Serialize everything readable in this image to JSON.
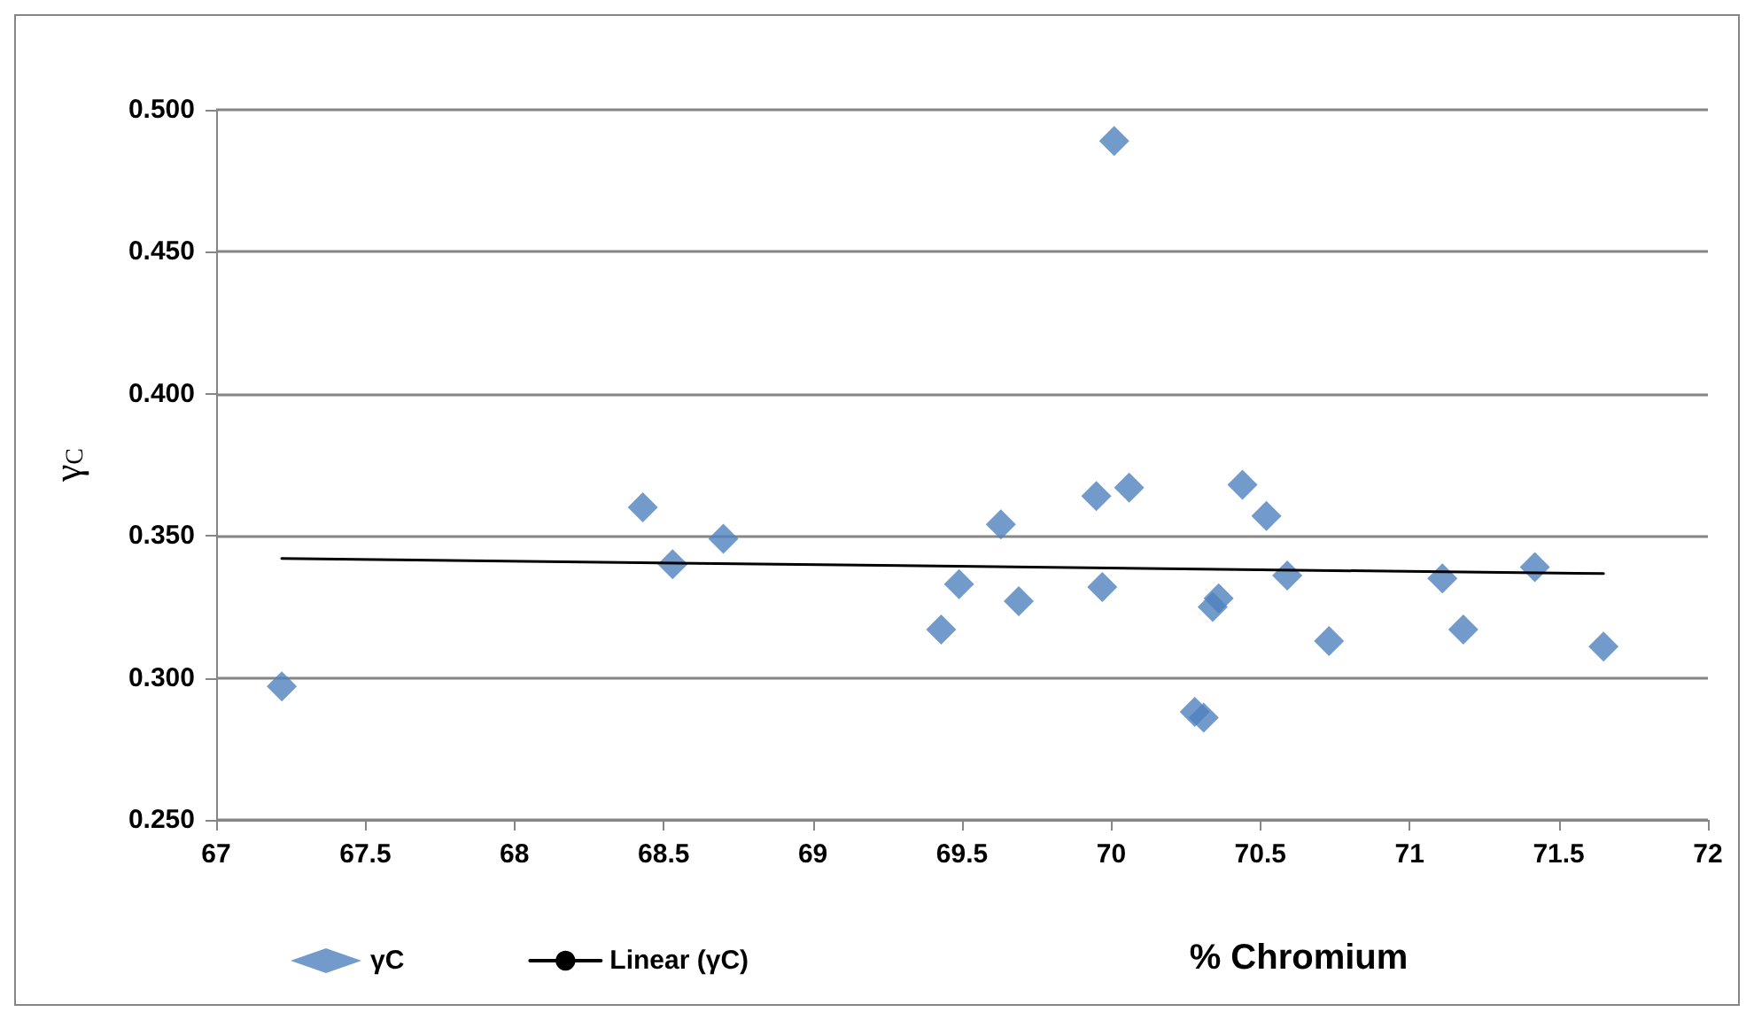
{
  "chart_data": {
    "type": "scatter",
    "xlabel": "% Chromium",
    "ylabel": "γ$_{C}$",
    "xlim": [
      67,
      72
    ],
    "xticks": [
      67,
      67.5,
      68,
      68.5,
      69,
      69.5,
      70,
      70.5,
      71,
      71.5,
      72
    ],
    "ylim": [
      0.25,
      0.5
    ],
    "yticks": [
      {
        "value": 0.25,
        "label": "0.250"
      },
      {
        "value": 0.3,
        "label": "0.300"
      },
      {
        "value": 0.35,
        "label": "0.350"
      },
      {
        "value": 0.4,
        "label": "0.400"
      },
      {
        "value": 0.45,
        "label": "0.450"
      },
      {
        "value": 0.5,
        "label": "0.500"
      }
    ],
    "grid": "y",
    "legend": "bottom left",
    "marker": "diamond",
    "series": [
      {
        "name": "γC",
        "color": "#4f81bd",
        "x": [
          67.22,
          68.43,
          68.53,
          68.7,
          69.43,
          69.49,
          69.63,
          69.69,
          69.95,
          69.97,
          70.01,
          70.06,
          70.28,
          70.31,
          70.34,
          70.36,
          70.44,
          70.52,
          70.59,
          70.73,
          71.11,
          71.18,
          71.42,
          71.65
        ],
        "values": [
          0.297,
          0.36,
          0.34,
          0.349,
          0.317,
          0.333,
          0.354,
          0.327,
          0.364,
          0.332,
          0.489,
          0.367,
          0.288,
          0.286,
          0.325,
          0.328,
          0.368,
          0.357,
          0.336,
          0.313,
          0.335,
          0.317,
          0.339,
          0.311
        ]
      },
      {
        "name": "Linear (γC)",
        "type": "line",
        "color": "#000000",
        "marker": "none",
        "line_style": "solid",
        "x": [
          67.22,
          71.65
        ],
        "values": [
          0.342,
          0.3367
        ]
      }
    ]
  }
}
